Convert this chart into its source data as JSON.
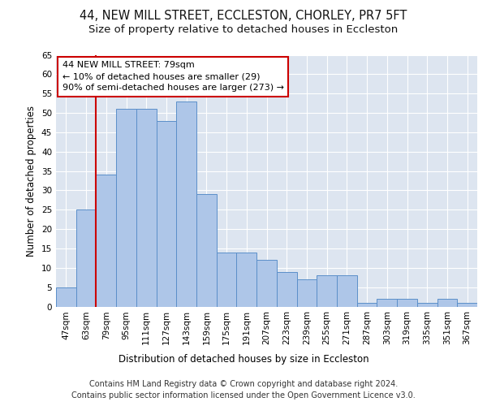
{
  "title": "44, NEW MILL STREET, ECCLESTON, CHORLEY, PR7 5FT",
  "subtitle": "Size of property relative to detached houses in Eccleston",
  "xlabel": "Distribution of detached houses by size in Eccleston",
  "ylabel": "Number of detached properties",
  "categories": [
    "47sqm",
    "63sqm",
    "79sqm",
    "95sqm",
    "111sqm",
    "127sqm",
    "143sqm",
    "159sqm",
    "175sqm",
    "191sqm",
    "207sqm",
    "223sqm",
    "239sqm",
    "255sqm",
    "271sqm",
    "287sqm",
    "303sqm",
    "319sqm",
    "335sqm",
    "351sqm",
    "367sqm"
  ],
  "values": [
    5,
    25,
    34,
    51,
    51,
    48,
    53,
    29,
    14,
    14,
    12,
    9,
    7,
    8,
    8,
    1,
    2,
    2,
    1,
    2,
    1
  ],
  "bar_color": "#aec6e8",
  "bar_edge_color": "#5b8fc9",
  "background_color": "#dde5f0",
  "vline_color": "#cc0000",
  "annotation_text": "44 NEW MILL STREET: 79sqm\n← 10% of detached houses are smaller (29)\n90% of semi-detached houses are larger (273) →",
  "annotation_box_color": "#ffffff",
  "annotation_box_edge_color": "#cc0000",
  "ylim": [
    0,
    65
  ],
  "yticks": [
    0,
    5,
    10,
    15,
    20,
    25,
    30,
    35,
    40,
    45,
    50,
    55,
    60,
    65
  ],
  "footer_line1": "Contains HM Land Registry data © Crown copyright and database right 2024.",
  "footer_line2": "Contains public sector information licensed under the Open Government Licence v3.0.",
  "title_fontsize": 10.5,
  "subtitle_fontsize": 9.5,
  "xlabel_fontsize": 8.5,
  "ylabel_fontsize": 8.5,
  "tick_fontsize": 7.5,
  "footer_fontsize": 7,
  "annot_fontsize": 8
}
